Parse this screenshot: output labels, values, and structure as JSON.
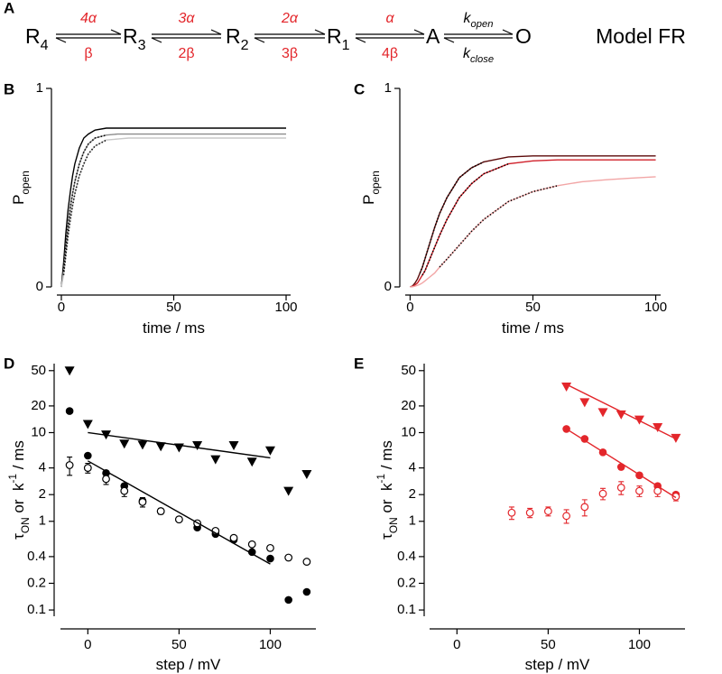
{
  "scheme": {
    "panel": "A",
    "states": [
      {
        "text": "R",
        "sub": "4"
      },
      {
        "text": "R",
        "sub": "3"
      },
      {
        "text": "R",
        "sub": "2"
      },
      {
        "text": "R",
        "sub": "1"
      },
      {
        "text": "A"
      },
      {
        "text": "O"
      }
    ],
    "rates": [
      {
        "color": "#e3262b",
        "forward": [
          {
            "text": "4α",
            "italic": true
          }
        ],
        "backward": [
          {
            "text": "β"
          }
        ]
      },
      {
        "color": "#e3262b",
        "forward": [
          {
            "text": "3α",
            "italic": true
          }
        ],
        "backward": [
          {
            "text": "2β"
          }
        ]
      },
      {
        "color": "#e3262b",
        "forward": [
          {
            "text": "2α",
            "italic": true
          }
        ],
        "backward": [
          {
            "text": "3β"
          }
        ]
      },
      {
        "color": "#e3262b",
        "forward": [
          {
            "text": "α",
            "italic": true
          }
        ],
        "backward": [
          {
            "text": "4β"
          }
        ]
      },
      {
        "color": "#000000",
        "forward": [
          {
            "text": "k",
            "italic": true
          },
          {
            "text": "open",
            "shift": "sub",
            "italic": true
          }
        ],
        "backward": [
          {
            "text": "k",
            "italic": true
          },
          {
            "text": "close",
            "shift": "sub",
            "italic": true
          }
        ]
      }
    ],
    "model": "Model FR"
  },
  "chart_data": [
    {
      "type": "line",
      "panel": "B",
      "xlabel": [
        {
          "text": "time / ms"
        }
      ],
      "ylabel": [
        {
          "text": "P"
        },
        {
          "text": "open",
          "shift": "sub"
        }
      ],
      "xlim": [
        -2,
        102
      ],
      "xticks": [
        0,
        50,
        100
      ],
      "ylim": [
        0,
        1
      ],
      "yticks": [
        0,
        1
      ],
      "x": [
        0,
        1,
        2,
        3,
        4,
        5,
        6,
        8,
        10,
        12,
        15,
        20,
        25,
        30,
        40,
        50,
        60,
        70,
        80,
        90,
        100
      ],
      "series": [
        {
          "color": "#000000",
          "style": "solid",
          "values": [
            0,
            0.12,
            0.27,
            0.39,
            0.48,
            0.56,
            0.62,
            0.7,
            0.75,
            0.77,
            0.79,
            0.8,
            0.8,
            0.8,
            0.8,
            0.8,
            0.8,
            0.8,
            0.8,
            0.8,
            0.8
          ]
        },
        {
          "color": "#8c8c8c",
          "style": "solid",
          "values": [
            0,
            0.08,
            0.2,
            0.31,
            0.4,
            0.47,
            0.53,
            0.62,
            0.68,
            0.72,
            0.75,
            0.765,
            0.77,
            0.77,
            0.77,
            0.77,
            0.77,
            0.77,
            0.77,
            0.77,
            0.77
          ]
        },
        {
          "color": "#c8c8c8",
          "style": "solid",
          "values": [
            0,
            0.06,
            0.16,
            0.26,
            0.34,
            0.41,
            0.47,
            0.56,
            0.62,
            0.67,
            0.71,
            0.74,
            0.745,
            0.75,
            0.75,
            0.75,
            0.75,
            0.75,
            0.75,
            0.75,
            0.75
          ]
        },
        {
          "color": "#000000",
          "style": "dotted",
          "values": [
            null,
            0.08,
            0.2,
            0.31,
            0.4,
            0.47,
            0.53,
            0.62,
            0.68,
            0.72,
            0.75,
            0.765,
            null,
            null,
            null,
            null,
            null,
            null,
            null,
            null,
            null
          ]
        },
        {
          "color": "#000000",
          "style": "dotted",
          "values": [
            null,
            0.06,
            0.16,
            0.26,
            0.34,
            0.41,
            0.47,
            0.56,
            0.62,
            0.67,
            0.71,
            0.74,
            null,
            null,
            null,
            null,
            null,
            null,
            null,
            null,
            null
          ]
        }
      ]
    },
    {
      "type": "line",
      "panel": "C",
      "xlabel": [
        {
          "text": "time / ms"
        }
      ],
      "ylabel": [
        {
          "text": "P"
        },
        {
          "text": "open",
          "shift": "sub"
        }
      ],
      "xlim": [
        -2,
        102
      ],
      "xticks": [
        0,
        50,
        100
      ],
      "ylim": [
        0,
        1
      ],
      "yticks": [
        0,
        1
      ],
      "x": [
        0,
        1,
        2,
        3,
        4,
        5,
        6,
        8,
        10,
        12,
        15,
        20,
        25,
        30,
        40,
        50,
        60,
        70,
        80,
        90,
        100
      ],
      "series": [
        {
          "color": "#5c0a0a",
          "style": "solid",
          "values": [
            0,
            0.005,
            0.02,
            0.04,
            0.07,
            0.1,
            0.14,
            0.22,
            0.3,
            0.37,
            0.45,
            0.55,
            0.6,
            0.63,
            0.655,
            0.66,
            0.66,
            0.66,
            0.66,
            0.66,
            0.66
          ]
        },
        {
          "color": "#d0202a",
          "style": "solid",
          "values": [
            0,
            0.003,
            0.01,
            0.02,
            0.04,
            0.06,
            0.08,
            0.14,
            0.2,
            0.26,
            0.34,
            0.45,
            0.52,
            0.57,
            0.62,
            0.635,
            0.64,
            0.64,
            0.64,
            0.64,
            0.64
          ]
        },
        {
          "color": "#f2a6a6",
          "style": "solid",
          "values": [
            0,
            0.001,
            0.004,
            0.008,
            0.013,
            0.02,
            0.03,
            0.05,
            0.07,
            0.1,
            0.14,
            0.21,
            0.28,
            0.34,
            0.43,
            0.48,
            0.51,
            0.53,
            0.54,
            0.548,
            0.555
          ]
        },
        {
          "color": "#000000",
          "style": "dotted",
          "values": [
            null,
            null,
            null,
            null,
            0.07,
            0.1,
            0.14,
            0.22,
            0.3,
            0.37,
            0.45,
            0.55,
            0.6,
            0.63,
            null,
            null,
            null,
            null,
            null,
            null,
            null
          ]
        },
        {
          "color": "#000000",
          "style": "dotted",
          "values": [
            null,
            null,
            null,
            null,
            null,
            0.06,
            0.08,
            0.14,
            0.2,
            0.26,
            0.34,
            0.45,
            0.52,
            0.57,
            0.62,
            null,
            null,
            null,
            null,
            null,
            null
          ]
        },
        {
          "color": "#000000",
          "style": "dotted",
          "values": [
            null,
            null,
            null,
            null,
            null,
            null,
            null,
            null,
            null,
            0.1,
            0.14,
            0.21,
            0.28,
            0.34,
            0.43,
            0.48,
            0.51,
            null,
            null,
            null,
            null
          ]
        }
      ]
    },
    {
      "type": "scatter",
      "panel": "D",
      "log_y": true,
      "xlabel": [
        {
          "text": "step / mV"
        }
      ],
      "ylabel": [
        {
          "text": "τ"
        },
        {
          "text": "ON",
          "shift": "sub"
        },
        {
          "text": " or  k"
        },
        {
          "text": "-1",
          "shift": "super"
        },
        {
          "text": " / ms"
        }
      ],
      "xlim": [
        -15,
        125
      ],
      "xticks": [
        0,
        50,
        100
      ],
      "ylim": [
        0.085,
        60
      ],
      "yticks": [
        0.1,
        0.2,
        0.4,
        1,
        2,
        4,
        10,
        20,
        50
      ],
      "series": [
        {
          "marker": "triangle-down",
          "color": "#000000",
          "x": [
            -10,
            0,
            10,
            20,
            30,
            40,
            50,
            60,
            70,
            80,
            90,
            100,
            110,
            120
          ],
          "values": [
            50,
            12.5,
            9.5,
            7.5,
            7.3,
            7,
            6.8,
            7.2,
            5,
            7.2,
            4.7,
            6.3,
            2.2,
            3.4
          ]
        },
        {
          "marker": "circle",
          "color": "#000000",
          "x": [
            -10,
            0,
            10,
            20,
            30,
            40,
            50,
            60,
            70,
            80,
            90,
            100,
            110,
            120
          ],
          "values": [
            17.5,
            5.5,
            3.5,
            2.5,
            1.7,
            1.3,
            1.05,
            0.85,
            0.72,
            0.62,
            0.45,
            0.38,
            0.13,
            0.16
          ]
        },
        {
          "marker": "circle-open",
          "color": "#000000",
          "x": [
            -10,
            0,
            10,
            20,
            30,
            40,
            50,
            60,
            70,
            80,
            90,
            100,
            110,
            120
          ],
          "values": [
            4.3,
            4,
            3,
            2.2,
            1.65,
            1.3,
            1.05,
            0.95,
            0.78,
            0.65,
            0.55,
            0.5,
            0.39,
            0.35
          ],
          "errors": [
            1,
            0.5,
            0.4,
            0.3,
            0.2,
            0.1,
            0.05,
            0.04,
            0.03,
            0.03,
            0.02,
            0.02,
            0.02,
            0.02
          ]
        },
        {
          "marker": "none",
          "color": "#000000",
          "x": [
            0,
            100
          ],
          "values": [
            10,
            5.2
          ]
        },
        {
          "marker": "none",
          "color": "#000000",
          "x": [
            0,
            100
          ],
          "values": [
            4.8,
            0.33
          ]
        }
      ]
    },
    {
      "type": "scatter",
      "panel": "E",
      "log_y": true,
      "xlabel": [
        {
          "text": "step / mV"
        }
      ],
      "ylabel": [
        {
          "text": "τ"
        },
        {
          "text": "ON",
          "shift": "sub"
        },
        {
          "text": " or  k"
        },
        {
          "text": "-1",
          "shift": "super"
        },
        {
          "text": " / ms"
        }
      ],
      "xlim": [
        -15,
        125
      ],
      "xticks": [
        0,
        50,
        100
      ],
      "ylim": [
        0.085,
        60
      ],
      "yticks": [
        0.1,
        0.2,
        0.4,
        1,
        2,
        4,
        10,
        20,
        50
      ],
      "series": [
        {
          "marker": "triangle-down",
          "color": "#e3262b",
          "x": [
            60,
            70,
            80,
            90,
            100,
            110,
            120
          ],
          "values": [
            33,
            22,
            17,
            16,
            14,
            11.5,
            8.7
          ]
        },
        {
          "marker": "circle",
          "color": "#e3262b",
          "x": [
            60,
            70,
            80,
            90,
            100,
            110,
            120
          ],
          "values": [
            11,
            8.5,
            6,
            4.1,
            3.3,
            2.5,
            2
          ]
        },
        {
          "marker": "circle-open",
          "color": "#e3262b",
          "x": [
            30,
            40,
            50,
            60,
            70,
            80,
            90,
            100,
            110,
            120
          ],
          "values": [
            1.25,
            1.25,
            1.3,
            1.15,
            1.45,
            2.05,
            2.4,
            2.2,
            2.2,
            1.9
          ],
          "errors": [
            0.2,
            0.15,
            0.15,
            0.2,
            0.3,
            0.3,
            0.4,
            0.3,
            0.3,
            0.2
          ]
        },
        {
          "marker": "none",
          "color": "#e3262b",
          "x": [
            60,
            120
          ],
          "values": [
            35,
            8.5
          ]
        },
        {
          "marker": "none",
          "color": "#e3262b",
          "x": [
            60,
            120
          ],
          "values": [
            11,
            1.85
          ]
        }
      ]
    }
  ]
}
